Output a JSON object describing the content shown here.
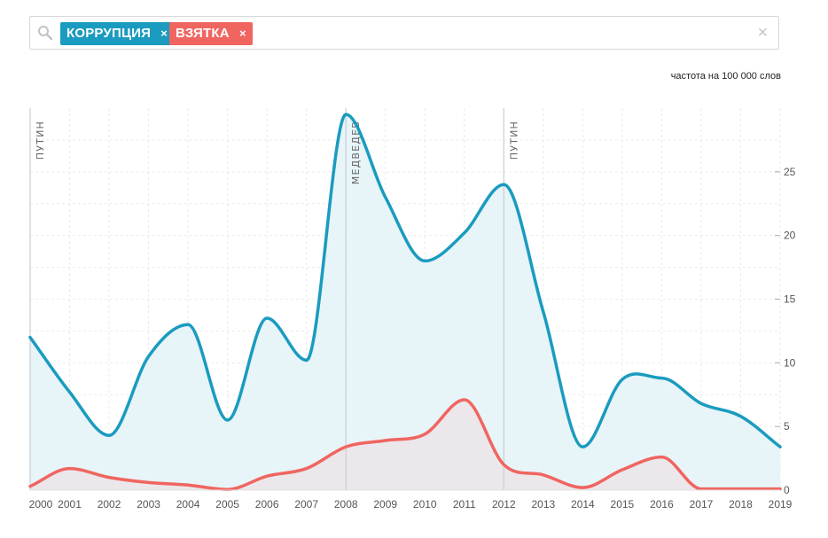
{
  "search": {
    "icon": "search-icon",
    "tags": [
      {
        "label": "КОРРУПЦИЯ",
        "color": "#1a9bbf",
        "remove": "×"
      },
      {
        "label": "ВЗЯТКА",
        "color": "#f06560",
        "remove": "×"
      }
    ],
    "clear": "×"
  },
  "unit_label": "частота на 100 000 слов",
  "chart_data": {
    "type": "area",
    "x": [
      2000,
      2001,
      2002,
      2003,
      2004,
      2005,
      2006,
      2007,
      2008,
      2009,
      2010,
      2011,
      2012,
      2013,
      2014,
      2015,
      2016,
      2017,
      2018,
      2019
    ],
    "series": [
      {
        "name": "КОРРУПЦИЯ",
        "color": "#1a9bbf",
        "fill": "#e6f3f8",
        "values": [
          12.0,
          7.7,
          4.3,
          10.5,
          13.0,
          5.5,
          13.5,
          10.2,
          29.5,
          23.0,
          18.0,
          20.2,
          24.0,
          14.0,
          3.4,
          8.7,
          8.8,
          6.8,
          5.8,
          3.4
        ]
      },
      {
        "name": "ВЗЯТКА",
        "color": "#f06560",
        "fill": "#ebe6ea",
        "values": [
          0.3,
          1.7,
          1.0,
          0.6,
          0.4,
          0.05,
          1.1,
          1.7,
          3.4,
          3.9,
          4.4,
          7.1,
          2.0,
          1.2,
          0.2,
          1.6,
          2.6,
          0.1,
          0.1,
          0.1
        ]
      }
    ],
    "xlim": [
      2000,
      2019
    ],
    "ylim": [
      0,
      30
    ],
    "yticks": [
      0,
      5,
      10,
      15,
      20,
      25
    ],
    "grid": true,
    "ylabel": "частота на 100 000 слов",
    "annotations": [
      {
        "x": 2000,
        "label": "ПУТИН"
      },
      {
        "x": 2008,
        "label": "МЕДВЕДЕВ"
      },
      {
        "x": 2012,
        "label": "ПУТИН"
      }
    ]
  }
}
